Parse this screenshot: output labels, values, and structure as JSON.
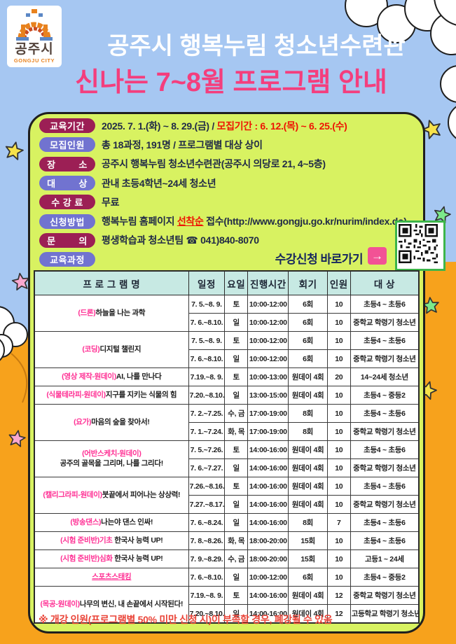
{
  "logo": {
    "name_ko": "공주시",
    "name_en": "GONGJU CITY"
  },
  "title": {
    "line1": "공주시 행복누림 청소년수련관",
    "line2": "신나는 7~8월 프로그램 안내"
  },
  "colors": {
    "sky": "#a6c7f2",
    "ground": "#f7a21c",
    "panel": "#d8f261",
    "badge_maroon": "#9c1f55",
    "badge_purple": "#7173d0",
    "table_header": "#c7e9e3",
    "title_pink": "#f43e7d",
    "name_pink": "#ff2e93",
    "alert_red": "#ee1403",
    "apply_navy": "#16265e",
    "arrow_pink": "#f25295",
    "qr_border_green": "#3db54a",
    "note_red": "#ea4438"
  },
  "info": {
    "rows": [
      {
        "badge": "교육기간",
        "color": "maroon",
        "parts": [
          {
            "t": "2025. 7. 1.(화) ~ 8. 29.(금) / "
          },
          {
            "t": "모집기간 : 6. 12.(목) ~ 6. 25.(수)",
            "s": "red"
          }
        ]
      },
      {
        "badge": "모집인원",
        "color": "purple",
        "parts": [
          {
            "t": "총 18과정, 191명 / 프로그램별 대상 상이"
          }
        ]
      },
      {
        "badge": "장        소",
        "color": "maroon",
        "parts": [
          {
            "t": "공주시 행복누림 청소년수련관(공주시 의당로 21, 4~5층)"
          }
        ]
      },
      {
        "badge": "대        상",
        "color": "purple",
        "parts": [
          {
            "t": "관내 초등4학년~24세 청소년"
          }
        ]
      },
      {
        "badge": "수 강 료",
        "color": "maroon",
        "parts": [
          {
            "t": "무료"
          }
        ]
      },
      {
        "badge": "신청방법",
        "color": "purple",
        "parts": [
          {
            "t": "행복누림 홈페이지 "
          },
          {
            "t": "선착순",
            "s": "red-u"
          },
          {
            "t": " 접수(http://www.gongju.go.kr/nurim/index.do)"
          }
        ]
      },
      {
        "badge": "문        의",
        "color": "maroon",
        "parts": [
          {
            "t": "평생학습과 청소년팀 ☎ 041)840-8070"
          }
        ]
      },
      {
        "badge": "교육과정",
        "color": "purple",
        "parts": []
      }
    ]
  },
  "apply": {
    "label": "수강신청 바로가기",
    "arrow": "→",
    "qr": "qr-code-nurim-homepage"
  },
  "table": {
    "headers": [
      "프 로 그 램 명",
      "일정",
      "요일",
      "진행시간",
      "회기",
      "인원",
      "대 상"
    ],
    "col_widths": [
      "40.1%",
      "9.4%",
      "6%",
      "10.6%",
      "10.1%",
      "6%",
      "17.8%"
    ],
    "programs": [
      {
        "name_pink": "(드론)",
        "name_dark": "하늘을 나는 과학",
        "rows": [
          [
            "7. 5.~8. 9.",
            "토",
            "10:00-12:00",
            "6회",
            "10",
            "초등4 ~ 초등6"
          ],
          [
            "7. 6.~8.10.",
            "일",
            "10:00-12:00",
            "6회",
            "10",
            "중학교 학령기 청소년"
          ]
        ]
      },
      {
        "name_pink": "(코딩)",
        "name_dark": "디지털 챌린지",
        "rows": [
          [
            "7. 5.~8. 9.",
            "토",
            "10:00-12:00",
            "6회",
            "10",
            "초등4 ~ 초등6"
          ],
          [
            "7. 6.~8.10.",
            "일",
            "10:00-12:00",
            "6회",
            "10",
            "중학교 학령기 청소년"
          ]
        ]
      },
      {
        "name_pink": "(영상  제작-원데이)",
        "name_dark": "AI, 나를 만나다",
        "rows": [
          [
            "7.19.~8. 9.",
            "토",
            "10:00-13:00",
            "원데이 4회",
            "20",
            "14~24세 청소년"
          ]
        ]
      },
      {
        "name_pink": "(식물테라피-원데이)",
        "name_dark": "지구를 지키는 식물의 힘",
        "rows": [
          [
            "7.20.~8.10.",
            "일",
            "13:00-15:00",
            "원데이 4회",
            "10",
            "초등4 ~ 중등2"
          ]
        ]
      },
      {
        "name_pink": "(요가)",
        "name_dark": "마음의 숲을 찾아서!",
        "rows": [
          [
            "7. 2.~7.25.",
            "수, 금",
            "17:00-19:00",
            "8회",
            "10",
            "초등4 ~ 초등6"
          ],
          [
            "7. 1.~7.24.",
            "화, 목",
            "17:00-19:00",
            "8회",
            "10",
            "중학교 학령기 청소년"
          ]
        ]
      },
      {
        "name_pink": "(어반스케치-원데이)",
        "name_break": true,
        "name_dark": "공주의 골목을 그리며, 나를 그리다!",
        "rows": [
          [
            "7. 5.~7.26.",
            "토",
            "14:00-16:00",
            "원데이 4회",
            "10",
            "초등4 ~ 초등6"
          ],
          [
            "7. 6.~7.27.",
            "일",
            "14:00-16:00",
            "원데이 4회",
            "10",
            "중학교 학령기 청소년"
          ]
        ]
      },
      {
        "name_pink": "(캘리그라피-원데이)",
        "name_dark": "붓끝에서 피어나는 상상력!",
        "rows": [
          [
            "7.26.~8.16.",
            "토",
            "14:00-16:00",
            "원데이 4회",
            "10",
            "초등4 ~ 초등6"
          ],
          [
            "7.27.~8.17.",
            "일",
            "14:00-16:00",
            "원데이 4회",
            "10",
            "중학교 학령기 청소년"
          ]
        ]
      },
      {
        "name_pink": "(방송댄스)",
        "name_dark": "나는야 댄스 인싸!",
        "rows": [
          [
            "7. 6.~8.24.",
            "일",
            "14:00-16:00",
            "8회",
            "7",
            "초등4 ~ 초등6"
          ]
        ]
      },
      {
        "name_pink": "(시험 준비반)기초",
        "name_dark": " 한국사 능력 UP!",
        "rows": [
          [
            "7. 8.~8.26.",
            "화, 목",
            "18:00-20:00",
            "15회",
            "10",
            "초등4 ~ 초등6"
          ]
        ]
      },
      {
        "name_pink": "(시험 준비반)심화",
        "name_dark": " 한국사 능력 UP!",
        "rows": [
          [
            "7. 9.~8.29.",
            "수, 금",
            "18:00-20:00",
            "15회",
            "10",
            "고등1 ~ 24세"
          ]
        ]
      },
      {
        "name_pink": "스포츠스태킹",
        "name_underline": true,
        "name_dark": "",
        "rows": [
          [
            "7. 6.~8.10.",
            "일",
            "10:00-12:00",
            "6회",
            "10",
            "초등4 ~ 중등2"
          ]
        ]
      },
      {
        "name_pink": "(목공-원데이)",
        "name_dark": "나무의 변신, 내 손끝에서 시작된다!",
        "rows": [
          [
            "7.19.~8. 9.",
            "토",
            "14:00-16:00",
            "원데이 4회",
            "12",
            "중학교 학령기 청소년"
          ],
          [
            "7.20.~8.10.",
            "일",
            "14:00-16:00",
            "원데이 4회",
            "12",
            "고등학교 학령기 청소년"
          ]
        ]
      }
    ]
  },
  "note": "※ 개강 인원(프로그램별 50% 미만 신청 시)이 부족할 경우, 폐강될 수 있음"
}
